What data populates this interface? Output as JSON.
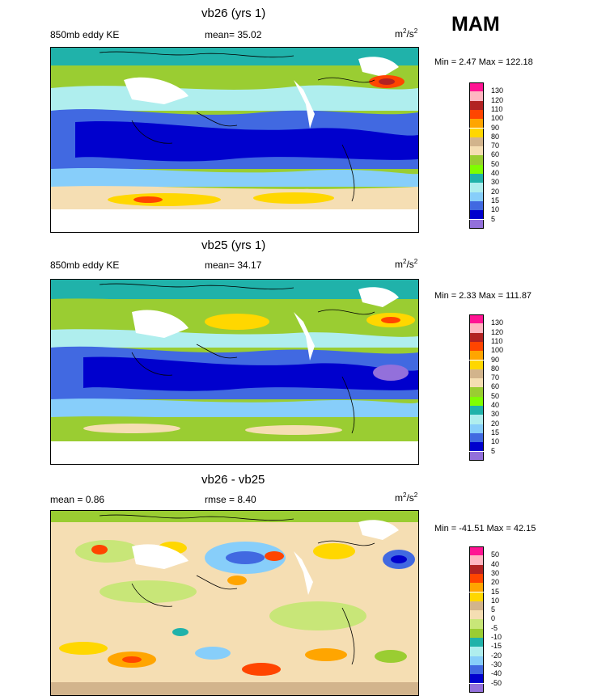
{
  "season": "MAM",
  "panels": [
    {
      "title": "vb26 (yrs 1)",
      "left_label": "850mb eddy KE",
      "stat_label": "mean=  35.02",
      "unit_base": "m",
      "unit_exp1": "2",
      "unit_mid": "/s",
      "unit_exp2": "2",
      "minmax": "Min =   2.47 Max = 122.18",
      "colorbar_labels": [
        "130",
        "120",
        "110",
        "100",
        "90",
        "80",
        "70",
        "60",
        "50",
        "40",
        "30",
        "20",
        "15",
        "10",
        "5"
      ]
    },
    {
      "title": "vb25 (yrs 1)",
      "left_label": "850mb eddy KE",
      "stat_label": "mean=  34.17",
      "unit_base": "m",
      "unit_exp1": "2",
      "unit_mid": "/s",
      "unit_exp2": "2",
      "minmax": "Min =   2.33 Max = 111.87",
      "colorbar_labels": [
        "130",
        "120",
        "110",
        "100",
        "90",
        "80",
        "70",
        "60",
        "50",
        "40",
        "30",
        "20",
        "15",
        "10",
        "5"
      ]
    },
    {
      "title": "vb26 - vb25",
      "left_label": "mean =   0.86",
      "stat_label": "rmse =   8.40",
      "unit_base": "m",
      "unit_exp1": "2",
      "unit_mid": "/s",
      "unit_exp2": "2",
      "minmax": "Min = -41.51 Max =  42.15",
      "colorbar_labels": [
        "50",
        "40",
        "30",
        "20",
        "15",
        "10",
        "5",
        "0",
        "-5",
        "-10",
        "-15",
        "-20",
        "-30",
        "-40",
        "-50"
      ]
    }
  ],
  "colors": {
    "abs_scale": [
      "#ff1493",
      "#ffb6c1",
      "#b22222",
      "#ff4500",
      "#ffa500",
      "#ffd700",
      "#d2b48c",
      "#f5deb3",
      "#9acd32",
      "#7fff00",
      "#20b2aa",
      "#afeeee",
      "#87cefa",
      "#4169e1",
      "#0000cd",
      "#9370db"
    ],
    "diff_scale": [
      "#ff1493",
      "#ffb6c1",
      "#b22222",
      "#ff4500",
      "#ffa500",
      "#ffd700",
      "#d2b48c",
      "#f5deb3",
      "#c8e678",
      "#9acd32",
      "#20b2aa",
      "#afeeee",
      "#87cefa",
      "#4169e1",
      "#0000cd",
      "#9370db"
    ]
  }
}
